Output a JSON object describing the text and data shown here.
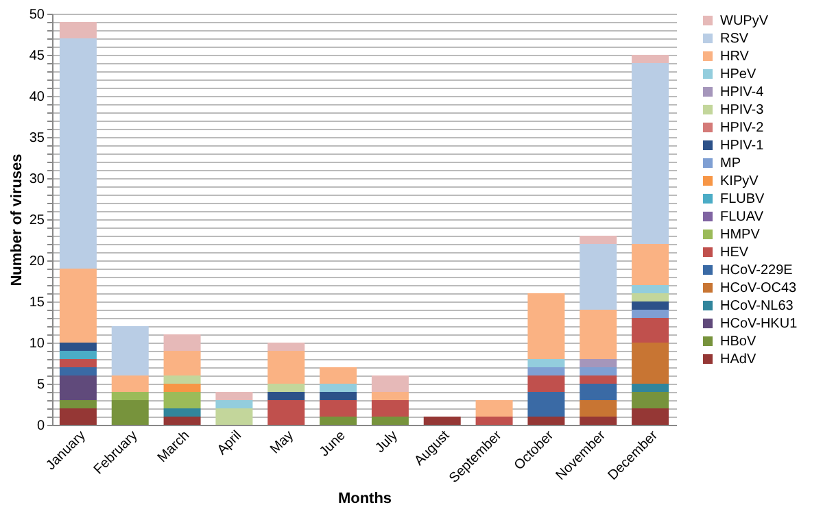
{
  "chart_data": {
    "type": "bar",
    "stacked": true,
    "xlabel": "Months",
    "ylabel": "Number of viruses",
    "categories": [
      "January",
      "February",
      "March",
      "April",
      "May",
      "June",
      "July",
      "August",
      "September",
      "October",
      "November",
      "December"
    ],
    "ylim": [
      0,
      50
    ],
    "yticks": [
      0,
      {
        "value": 1,
        "label": null
      },
      {
        "value": 2,
        "label": null
      },
      {
        "value": 3,
        "label": null
      },
      {
        "value": 4,
        "label": null
      },
      5,
      {
        "value": 6,
        "label": null
      },
      {
        "value": 7,
        "label": null
      },
      {
        "value": 8,
        "label": null
      },
      {
        "value": 9,
        "label": null
      },
      10,
      {
        "value": 11,
        "label": null
      },
      {
        "value": 12,
        "label": null
      },
      {
        "value": 13,
        "label": null
      },
      {
        "value": 14,
        "label": null
      },
      15,
      {
        "value": 16,
        "label": null
      },
      {
        "value": 17,
        "label": null
      },
      {
        "value": 18,
        "label": null
      },
      {
        "value": 19,
        "label": null
      },
      20,
      {
        "value": 21,
        "label": null
      },
      {
        "value": 22,
        "label": null
      },
      {
        "value": 23,
        "label": null
      },
      {
        "value": 24,
        "label": null
      },
      25,
      {
        "value": 26,
        "label": null
      },
      {
        "value": 27,
        "label": null
      },
      {
        "value": 28,
        "label": null
      },
      {
        "value": 29,
        "label": null
      },
      30,
      {
        "value": 31,
        "label": null
      },
      {
        "value": 32,
        "label": null
      },
      {
        "value": 33,
        "label": null
      },
      {
        "value": 34,
        "label": null
      },
      35,
      {
        "value": 36,
        "label": null
      },
      {
        "value": 37,
        "label": null
      },
      {
        "value": 38,
        "label": null
      },
      {
        "value": 39,
        "label": null
      },
      40,
      {
        "value": 41,
        "label": null
      },
      {
        "value": 42,
        "label": null
      },
      {
        "value": 43,
        "label": null
      },
      {
        "value": 44,
        "label": null
      },
      45,
      {
        "value": 46,
        "label": null
      },
      {
        "value": 47,
        "label": null
      },
      {
        "value": 48,
        "label": null
      },
      {
        "value": 49,
        "label": null
      },
      50
    ],
    "grid": "y",
    "legend": "right",
    "series": [
      {
        "name": "HAdV",
        "color": "#953735",
        "values": [
          2,
          0,
          1,
          0,
          0,
          0,
          0,
          1,
          0,
          1,
          1,
          2
        ]
      },
      {
        "name": "HBoV",
        "color": "#77933c",
        "values": [
          1,
          3,
          0,
          0,
          0,
          1,
          1,
          0,
          0,
          0,
          0,
          2
        ]
      },
      {
        "name": "HCoV-HKU1",
        "color": "#604a7b",
        "values": [
          3,
          0,
          0,
          0,
          0,
          0,
          0,
          0,
          0,
          0,
          0,
          0
        ]
      },
      {
        "name": "HCoV-NL63",
        "color": "#31859c",
        "values": [
          0,
          0,
          1,
          0,
          0,
          0,
          0,
          0,
          0,
          0,
          0,
          1
        ]
      },
      {
        "name": "HCoV-OC43",
        "color": "#c87533",
        "values": [
          0,
          0,
          0,
          0,
          0,
          0,
          0,
          0,
          0,
          0,
          2,
          5
        ]
      },
      {
        "name": "HCoV-229E",
        "color": "#3a6aa5",
        "values": [
          1,
          0,
          0,
          0,
          0,
          0,
          0,
          0,
          0,
          3,
          2,
          0
        ]
      },
      {
        "name": "HEV",
        "color": "#c0504d",
        "values": [
          1,
          0,
          0,
          0,
          3,
          2,
          2,
          0,
          1,
          2,
          1,
          3
        ]
      },
      {
        "name": "HMPV",
        "color": "#9bbb59",
        "values": [
          0,
          1,
          2,
          0,
          0,
          0,
          0,
          0,
          0,
          0,
          0,
          0
        ]
      },
      {
        "name": "FLUAV",
        "color": "#8064a2",
        "values": [
          0,
          0,
          0,
          0,
          0,
          0,
          0,
          0,
          0,
          0,
          0,
          0
        ]
      },
      {
        "name": "FLUBV",
        "color": "#4bacc6",
        "values": [
          1,
          0,
          0,
          0,
          0,
          0,
          0,
          0,
          0,
          0,
          0,
          0
        ]
      },
      {
        "name": "KIPyV",
        "color": "#f79646",
        "values": [
          0,
          0,
          1,
          0,
          0,
          0,
          0,
          0,
          0,
          0,
          0,
          0
        ]
      },
      {
        "name": "MP",
        "color": "#7f9fd3",
        "values": [
          0,
          0,
          0,
          0,
          0,
          0,
          0,
          0,
          0,
          1,
          1,
          1
        ]
      },
      {
        "name": "HPIV-1",
        "color": "#2c5189",
        "values": [
          1,
          0,
          0,
          0,
          1,
          1,
          0,
          0,
          0,
          0,
          0,
          1
        ]
      },
      {
        "name": "HPIV-2",
        "color": "#d47a78",
        "values": [
          0,
          0,
          0,
          0,
          0,
          0,
          0,
          0,
          0,
          0,
          0,
          0
        ]
      },
      {
        "name": "HPIV-3",
        "color": "#c3d69b",
        "values": [
          0,
          0,
          1,
          2,
          1,
          0,
          0,
          0,
          0,
          0,
          0,
          1
        ]
      },
      {
        "name": "HPIV-4",
        "color": "#a596bb",
        "values": [
          0,
          0,
          0,
          0,
          0,
          0,
          0,
          0,
          0,
          0,
          1,
          0
        ]
      },
      {
        "name": "HPeV",
        "color": "#93cddd",
        "values": [
          0,
          0,
          0,
          1,
          0,
          1,
          0,
          0,
          0,
          1,
          0,
          1
        ]
      },
      {
        "name": "HRV",
        "color": "#fab283",
        "values": [
          9,
          2,
          3,
          0,
          4,
          2,
          1,
          0,
          2,
          8,
          6,
          5
        ]
      },
      {
        "name": "RSV",
        "color": "#b9cde5",
        "values": [
          28,
          6,
          0,
          0,
          0,
          0,
          0,
          0,
          0,
          0,
          8,
          22
        ]
      },
      {
        "name": "WUPyV",
        "color": "#e6b9b8",
        "values": [
          2,
          0,
          2,
          1,
          1,
          0,
          2,
          0,
          0,
          0,
          1,
          1
        ]
      }
    ]
  }
}
